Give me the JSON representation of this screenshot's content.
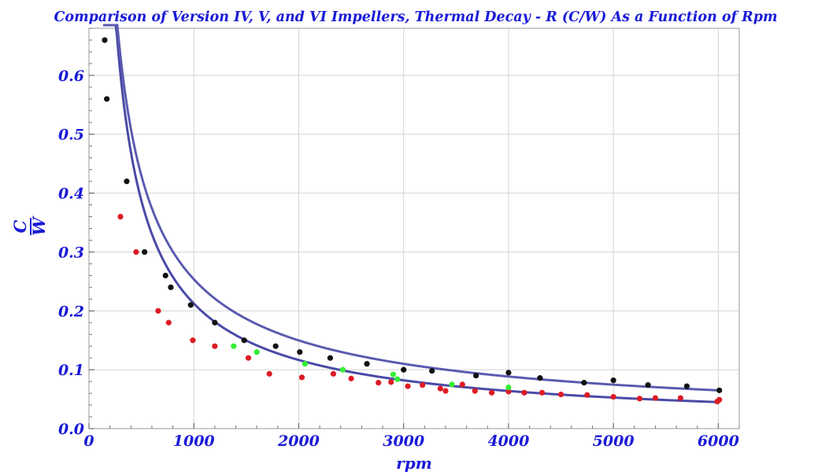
{
  "chart_data": {
    "type": "scatter",
    "title": "Comparison of Version IV, V, and VI Impellers, Thermal Decay - R (C/W) As a Function of Rpm",
    "xlabel": "rpm",
    "ylabel": {
      "numerator": "C",
      "denominator": "W"
    },
    "xlim": [
      0,
      6200
    ],
    "ylim": [
      0,
      0.68
    ],
    "xticks": [
      0,
      1000,
      2000,
      3000,
      4000,
      5000,
      6000
    ],
    "yticks": [
      0.0,
      0.1,
      0.2,
      0.3,
      0.4,
      0.5,
      0.6
    ],
    "xtick_labels": [
      "0",
      "1000",
      "2000",
      "3000",
      "4000",
      "5000",
      "6000"
    ],
    "ytick_labels": [
      "0.0",
      "0.1",
      "0.2",
      "0.3",
      "0.4",
      "0.5",
      "0.6"
    ],
    "grid": true,
    "colors": {
      "text": "#1a1ad6",
      "solid_curve": "#4a4aa6",
      "dashed_curve": "#5a5ab0",
      "black_points": "#111111",
      "red_points": "#dd1b24",
      "green_points": "#33ee33",
      "grid": "#d4d4d4",
      "frame": "#9a9a9a"
    },
    "series": [
      {
        "marker": "black",
        "x": [
          150,
          170,
          360,
          530,
          730,
          780,
          970,
          1200,
          1480,
          1780,
          2010,
          2300,
          2650,
          3000,
          3270,
          3690,
          4000,
          4300,
          4720,
          5000,
          5330,
          5700,
          6010
        ],
        "y": [
          0.66,
          0.56,
          0.42,
          0.3,
          0.26,
          0.24,
          0.21,
          0.18,
          0.15,
          0.14,
          0.13,
          0.12,
          0.11,
          0.1,
          0.098,
          0.09,
          0.095,
          0.086,
          0.078,
          0.082,
          0.074,
          0.072,
          0.065
        ]
      },
      {
        "marker": "red",
        "x": [
          300,
          450,
          660,
          760,
          990,
          1200,
          1520,
          1720,
          2030,
          2330,
          2500,
          2760,
          2880,
          3040,
          3180,
          3350,
          3400,
          3560,
          3680,
          3840,
          4000,
          4150,
          4320,
          4500,
          4750,
          5000,
          5250,
          5400,
          5640,
          5990,
          6010
        ],
        "y": [
          0.36,
          0.3,
          0.2,
          0.18,
          0.15,
          0.14,
          0.12,
          0.093,
          0.087,
          0.093,
          0.085,
          0.078,
          0.079,
          0.072,
          0.074,
          0.068,
          0.064,
          0.075,
          0.064,
          0.061,
          0.063,
          0.061,
          0.061,
          0.058,
          0.057,
          0.054,
          0.051,
          0.052,
          0.052,
          0.046,
          0.049
        ]
      },
      {
        "marker": "green",
        "x": [
          1380,
          1600,
          2060,
          2420,
          2900,
          2940,
          3460,
          4000
        ],
        "y": [
          0.14,
          0.13,
          0.11,
          0.1,
          0.092,
          0.084,
          0.075,
          0.07
        ]
      }
    ],
    "curves": [
      {
        "style": "solid",
        "a": 2.1535,
        "b": 0.00945,
        "x_range": [
          145,
          6000
        ]
      },
      {
        "style": "dashed",
        "a": 1.6766,
        "b": 0.03571,
        "x_range": [
          150,
          6000
        ]
      }
    ]
  }
}
